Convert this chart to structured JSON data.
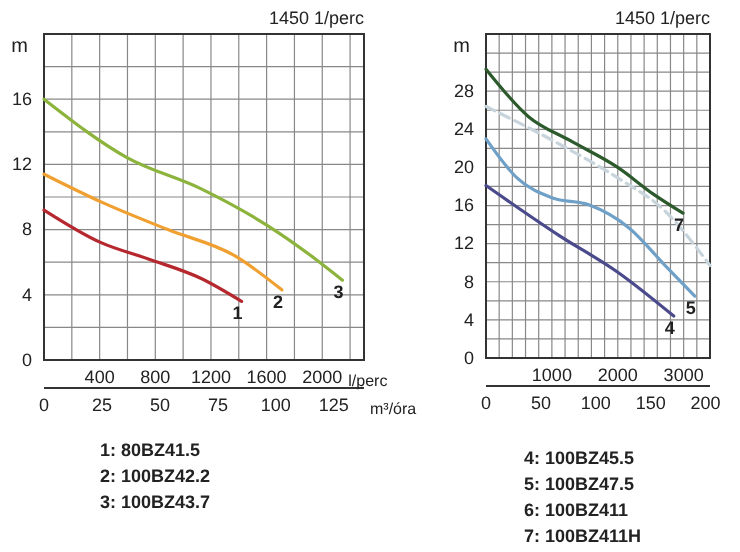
{
  "chart_data": [
    {
      "type": "line",
      "title": "1450 1/perc",
      "ylabel": "m",
      "xlabel": "l/perc",
      "x2label": "m³/óra",
      "grid": true,
      "xlim": [
        0,
        2300
      ],
      "xticks": [
        {
          "value": 0,
          "label": null
        },
        {
          "value": 200,
          "label": null
        },
        400,
        {
          "value": 600,
          "label": null
        },
        800,
        {
          "value": 1000,
          "label": null
        },
        1200,
        {
          "value": 1400,
          "label": null
        },
        1600,
        {
          "value": 1800,
          "label": null
        },
        2000,
        {
          "value": 2200,
          "label": null
        }
      ],
      "ylim": [
        0,
        20
      ],
      "yticks": [
        0,
        {
          "value": 2,
          "label": null
        },
        4,
        {
          "value": 6,
          "label": null
        },
        8,
        {
          "value": 10,
          "label": null
        },
        12,
        {
          "value": 14,
          "label": null
        },
        16,
        {
          "value": 18,
          "label": null
        }
      ],
      "x2lim": [
        0,
        138
      ],
      "x2ticks": [
        0,
        25,
        50,
        75,
        100,
        125
      ],
      "series": [
        {
          "color": "#b5282e",
          "x": [
            0,
            410,
            750,
            1130,
            1420
          ],
          "values": [
            9.2,
            7.2,
            6.2,
            5.0,
            3.6
          ]
        },
        {
          "color": "#f0a030",
          "x": [
            0,
            410,
            890,
            1370,
            1710
          ],
          "values": [
            11.4,
            9.7,
            8.0,
            6.4,
            4.3
          ]
        },
        {
          "color": "#8cb43c",
          "x": [
            0,
            600,
            1130,
            1615,
            1950,
            2145
          ],
          "values": [
            16,
            12.4,
            10.5,
            8.2,
            6.2,
            4.9
          ]
        }
      ],
      "annotations": [
        {
          "text": "1",
          "x": 1420,
          "y": 3.6
        },
        {
          "text": "2",
          "x": 1710,
          "y": 4.3
        },
        {
          "text": "3",
          "x": 2145,
          "y": 4.9
        },
        "1: 80BZ41.5",
        "2: 100BZ42.2",
        "3: 100BZ43.7"
      ]
    },
    {
      "type": "line",
      "title": "1450 1/perc",
      "ylabel": "m",
      "grid": true,
      "xlim": [
        0,
        3400
      ],
      "xticks": [
        {
          "value": 0,
          "label": null
        },
        {
          "value": 200,
          "label": null
        },
        {
          "value": 400,
          "label": null
        },
        {
          "value": 600,
          "label": null
        },
        {
          "value": 800,
          "label": null
        },
        1000,
        {
          "value": 1200,
          "label": null
        },
        {
          "value": 1400,
          "label": null
        },
        {
          "value": 1600,
          "label": null
        },
        {
          "value": 1800,
          "label": null
        },
        2000,
        {
          "value": 2200,
          "label": null
        },
        {
          "value": 2400,
          "label": null
        },
        {
          "value": 2600,
          "label": null
        },
        {
          "value": 2800,
          "label": null
        },
        3000,
        {
          "value": 3200,
          "label": null
        }
      ],
      "ylim": [
        0,
        34
      ],
      "yticks": [
        0,
        {
          "value": 2,
          "label": null
        },
        4,
        {
          "value": 6,
          "label": null
        },
        8,
        {
          "value": 10,
          "label": null
        },
        12,
        {
          "value": 14,
          "label": null
        },
        16,
        {
          "value": 18,
          "label": null
        },
        20,
        {
          "value": 22,
          "label": null
        },
        24,
        {
          "value": 26,
          "label": null
        },
        28,
        {
          "value": 30,
          "label": null
        },
        {
          "value": 32,
          "label": null
        }
      ],
      "x2lim": [
        0,
        204
      ],
      "x2ticks": [
        0,
        50,
        100,
        150,
        200
      ],
      "series": [
        {
          "color": "#4a4a8c",
          "x": [
            0,
            1100,
            2000,
            2850
          ],
          "values": [
            18.1,
            12.9,
            9.0,
            4.4
          ]
        },
        {
          "color": "#6fa0c8",
          "x": [
            0,
            470,
            1010,
            1550,
            2180,
            2720,
            3170
          ],
          "values": [
            23,
            18.9,
            16.8,
            16.1,
            13.6,
            9.7,
            6.5
          ]
        },
        {
          "color": "#c8d4dc",
          "line_style": "dashed",
          "x": [
            0,
            1100,
            2000,
            2720,
            3400
          ],
          "values": [
            26.4,
            22.5,
            18.9,
            15.4,
            9.7
          ]
        },
        {
          "color": "#2d5a2d",
          "x": [
            0,
            650,
            1280,
            2000,
            2540,
            2990
          ],
          "values": [
            30.3,
            25.3,
            22.8,
            20,
            17.2,
            15.2
          ]
        }
      ],
      "annotations": [
        {
          "text": "4",
          "x": 2850,
          "y": 4.4
        },
        {
          "text": "5",
          "x": 3170,
          "y": 6.5
        },
        {
          "text": "7",
          "x": 2990,
          "y": 15.2
        },
        "4: 100BZ45.5",
        "5: 100BZ47.5",
        "6: 100BZ411",
        "7: 100BZ411H"
      ]
    }
  ]
}
